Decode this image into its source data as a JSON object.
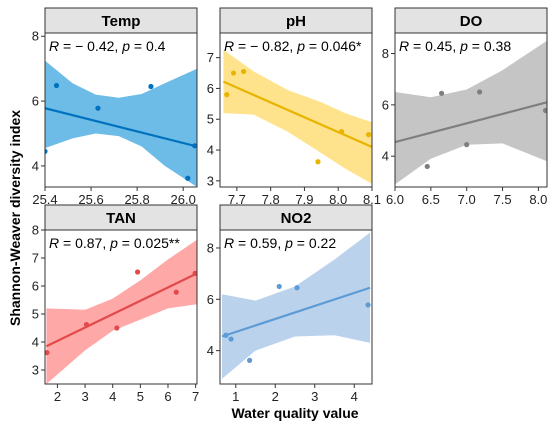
{
  "xlabel": "Water quality value",
  "ylabel": "Shannon-Weaver diversity index",
  "chart_data": [
    {
      "type": "scatter",
      "title": "Temp",
      "stat": {
        "r_text": "R",
        "r_value": "= − 0.42",
        "p_text": "p",
        "p_value": "= 0.4"
      },
      "color": "#0072BD",
      "band_color": "#5DB5E6",
      "xlim": [
        25.4,
        26.06
      ],
      "ylim": [
        3.35,
        8.1
      ],
      "xticks": [
        "25.4",
        "25.6",
        "25.8",
        "26.0"
      ],
      "xtick_values": [
        25.4,
        25.6,
        25.8,
        26.0
      ],
      "yticks": [
        "4",
        "6",
        "8"
      ],
      "ytick_values": [
        4,
        6,
        8
      ],
      "points": [
        [
          25.4,
          4.45
        ],
        [
          25.45,
          6.48
        ],
        [
          25.63,
          5.78
        ],
        [
          25.86,
          6.45
        ],
        [
          26.02,
          3.62
        ],
        [
          26.05,
          4.62
        ]
      ],
      "fit": [
        [
          25.4,
          5.78
        ],
        [
          26.06,
          4.6
        ]
      ],
      "band_upper": [
        [
          25.4,
          7.25
        ],
        [
          25.52,
          6.55
        ],
        [
          25.62,
          6.2
        ],
        [
          25.72,
          6.1
        ],
        [
          25.82,
          6.22
        ],
        [
          25.92,
          6.55
        ],
        [
          26.06,
          7.0
        ]
      ],
      "band_lower": [
        [
          25.4,
          4.55
        ],
        [
          25.52,
          4.85
        ],
        [
          25.62,
          5.0
        ],
        [
          25.72,
          4.92
        ],
        [
          25.82,
          4.6
        ],
        [
          25.92,
          4.0
        ],
        [
          26.06,
          3.35
        ]
      ]
    },
    {
      "type": "scatter",
      "title": "pH",
      "stat": {
        "r_text": "R",
        "r_value": "= − 0.82",
        "p_text": "p",
        "p_value": "= 0.046*"
      },
      "color": "#E8B400",
      "band_color": "#FFE080",
      "xlim": [
        7.65,
        8.1
      ],
      "ylim": [
        2.8,
        7.8
      ],
      "xticks": [
        "7.7",
        "7.8",
        "7.9",
        "8.0",
        "8.1"
      ],
      "xtick_values": [
        7.7,
        7.8,
        7.9,
        8.0,
        8.1
      ],
      "yticks": [
        "3",
        "4",
        "5",
        "6",
        "7"
      ],
      "ytick_values": [
        3,
        4,
        5,
        6,
        7
      ],
      "points": [
        [
          7.67,
          5.8
        ],
        [
          7.69,
          6.5
        ],
        [
          7.72,
          6.55
        ],
        [
          7.94,
          3.62
        ],
        [
          8.01,
          4.6
        ],
        [
          8.09,
          4.5
        ]
      ],
      "fit": [
        [
          7.66,
          6.22
        ],
        [
          8.1,
          4.1
        ]
      ],
      "band_upper": [
        [
          7.66,
          7.25
        ],
        [
          7.75,
          6.55
        ],
        [
          7.85,
          5.95
        ],
        [
          7.95,
          5.55
        ],
        [
          8.02,
          5.2
        ],
        [
          8.1,
          4.9
        ]
      ],
      "band_lower": [
        [
          7.66,
          5.2
        ],
        [
          7.75,
          5.15
        ],
        [
          7.85,
          4.6
        ],
        [
          7.95,
          3.9
        ],
        [
          8.02,
          3.4
        ],
        [
          8.1,
          2.9
        ]
      ]
    },
    {
      "type": "scatter",
      "title": "DO",
      "stat": {
        "r_text": "R",
        "r_value": "= 0.45",
        "p_text": "p",
        "p_value": "= 0.38"
      },
      "color": "#7F7F7F",
      "band_color": "#BFBFBF",
      "xlim": [
        6.0,
        8.12
      ],
      "ylim": [
        2.8,
        8.8
      ],
      "xticks": [
        "6.0",
        "6.5",
        "7.0",
        "7.5",
        "8.0"
      ],
      "xtick_values": [
        6.0,
        6.5,
        7.0,
        7.5,
        8.0
      ],
      "yticks": [
        "4",
        "6",
        "8"
      ],
      "ytick_values": [
        4,
        6,
        8
      ],
      "points": [
        [
          6.45,
          3.6
        ],
        [
          6.65,
          6.45
        ],
        [
          7.0,
          4.45
        ],
        [
          7.18,
          6.5
        ],
        [
          8.1,
          5.78
        ]
      ],
      "fit": [
        [
          6.0,
          4.55
        ],
        [
          8.12,
          6.1
        ]
      ],
      "band_upper": [
        [
          6.0,
          6.5
        ],
        [
          6.5,
          6.3
        ],
        [
          7.0,
          6.6
        ],
        [
          7.5,
          7.35
        ],
        [
          8.12,
          8.5
        ]
      ],
      "band_lower": [
        [
          6.0,
          2.9
        ],
        [
          6.5,
          3.9
        ],
        [
          7.0,
          4.45
        ],
        [
          7.5,
          4.5
        ],
        [
          8.12,
          3.8
        ]
      ]
    },
    {
      "type": "scatter",
      "title": "TAN",
      "stat": {
        "r_text": "R",
        "r_value": "= 0.87",
        "p_text": "p",
        "p_value": "= 0.025**"
      },
      "color": "#E34A4A",
      "band_color": "#FF9F9F",
      "xlim": [
        1.55,
        7.05
      ],
      "ylim": [
        2.5,
        8.0
      ],
      "xticks": [
        "2",
        "3",
        "4",
        "5",
        "6",
        "7"
      ],
      "xtick_values": [
        2,
        3,
        4,
        5,
        6,
        7
      ],
      "yticks": [
        "3",
        "4",
        "5",
        "6",
        "7",
        "8"
      ],
      "ytick_values": [
        3,
        4,
        5,
        6,
        7,
        8
      ],
      "points": [
        [
          1.62,
          3.62
        ],
        [
          3.05,
          4.62
        ],
        [
          4.15,
          4.5
        ],
        [
          4.9,
          6.5
        ],
        [
          6.3,
          5.78
        ],
        [
          6.98,
          6.45
        ]
      ],
      "fit": [
        [
          1.6,
          3.85
        ],
        [
          7.05,
          6.45
        ]
      ],
      "band_upper": [
        [
          1.6,
          5.2
        ],
        [
          3.0,
          5.15
        ],
        [
          4.0,
          5.55
        ],
        [
          5.0,
          6.2
        ],
        [
          6.0,
          6.95
        ],
        [
          7.05,
          7.65
        ]
      ],
      "band_lower": [
        [
          1.6,
          2.5
        ],
        [
          3.0,
          3.7
        ],
        [
          4.0,
          4.4
        ],
        [
          5.0,
          4.8
        ],
        [
          6.0,
          5.2
        ],
        [
          7.05,
          5.35
        ]
      ]
    },
    {
      "type": "scatter",
      "title": "NO2",
      "stat": {
        "r_text": "R",
        "r_value": "= 0.59",
        "p_text": "p",
        "p_value": "= 0.22"
      },
      "color": "#5C9BD5",
      "band_color": "#B4CDEB",
      "xlim": [
        0.6,
        4.45
      ],
      "ylim": [
        2.7,
        8.7
      ],
      "xticks": [
        "1",
        "2",
        "3",
        "4"
      ],
      "xtick_values": [
        1,
        2,
        3,
        4
      ],
      "yticks": [
        "4",
        "6",
        "8"
      ],
      "ytick_values": [
        4,
        6,
        8
      ],
      "points": [
        [
          0.75,
          4.6
        ],
        [
          0.88,
          4.45
        ],
        [
          1.35,
          3.62
        ],
        [
          2.1,
          6.5
        ],
        [
          2.55,
          6.45
        ],
        [
          4.35,
          5.78
        ]
      ],
      "fit": [
        [
          0.65,
          4.55
        ],
        [
          4.4,
          6.45
        ]
      ],
      "band_upper": [
        [
          0.65,
          6.2
        ],
        [
          1.5,
          5.95
        ],
        [
          2.5,
          6.5
        ],
        [
          3.5,
          7.55
        ],
        [
          4.4,
          8.6
        ]
      ],
      "band_lower": [
        [
          0.65,
          2.9
        ],
        [
          1.5,
          4.0
        ],
        [
          2.5,
          4.55
        ],
        [
          3.5,
          4.6
        ],
        [
          4.4,
          4.3
        ]
      ]
    }
  ]
}
